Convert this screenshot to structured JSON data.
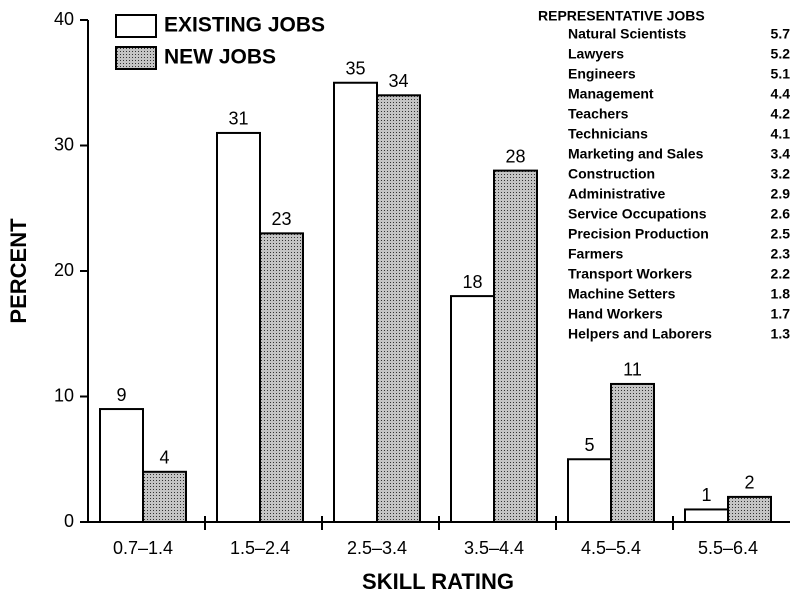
{
  "chart_data": {
    "type": "bar",
    "ylabel": "PERCENT",
    "xlabel": "SKILL RATING",
    "categories": [
      "0.7–1.4",
      "1.5–2.4",
      "2.5–3.4",
      "3.5–4.4",
      "4.5–5.4",
      "5.5–6.4"
    ],
    "series": [
      {
        "name": "EXISTING JOBS",
        "color": "#ffffff",
        "values": [
          9,
          31,
          35,
          18,
          5,
          1
        ]
      },
      {
        "name": "NEW JOBS",
        "color": "#c4c4c4",
        "values": [
          4,
          23,
          34,
          28,
          11,
          2
        ]
      }
    ],
    "ylim": [
      0,
      40
    ],
    "yticks": [
      0,
      10,
      20,
      30,
      40
    ],
    "grid": false,
    "legend": "upper left",
    "inset": {
      "title": "REPRESENTATIVE JOBS",
      "rows": [
        {
          "name": "Natural Scientists",
          "value": 5.7
        },
        {
          "name": "Lawyers",
          "value": 5.2
        },
        {
          "name": "Engineers",
          "value": 5.1
        },
        {
          "name": "Management",
          "value": 4.4
        },
        {
          "name": "Teachers",
          "value": 4.2
        },
        {
          "name": "Technicians",
          "value": 4.1
        },
        {
          "name": "Marketing and Sales",
          "value": 3.4
        },
        {
          "name": "Construction",
          "value": 3.2
        },
        {
          "name": "Administrative",
          "value": 2.9
        },
        {
          "name": "Service Occupations",
          "value": 2.6
        },
        {
          "name": "Precision Production",
          "value": 2.5
        },
        {
          "name": "Farmers",
          "value": 2.3
        },
        {
          "name": "Transport Workers",
          "value": 2.2
        },
        {
          "name": "Machine Setters",
          "value": 1.8
        },
        {
          "name": "Hand Workers",
          "value": 1.7
        },
        {
          "name": "Helpers and Laborers",
          "value": 1.3
        }
      ]
    }
  }
}
